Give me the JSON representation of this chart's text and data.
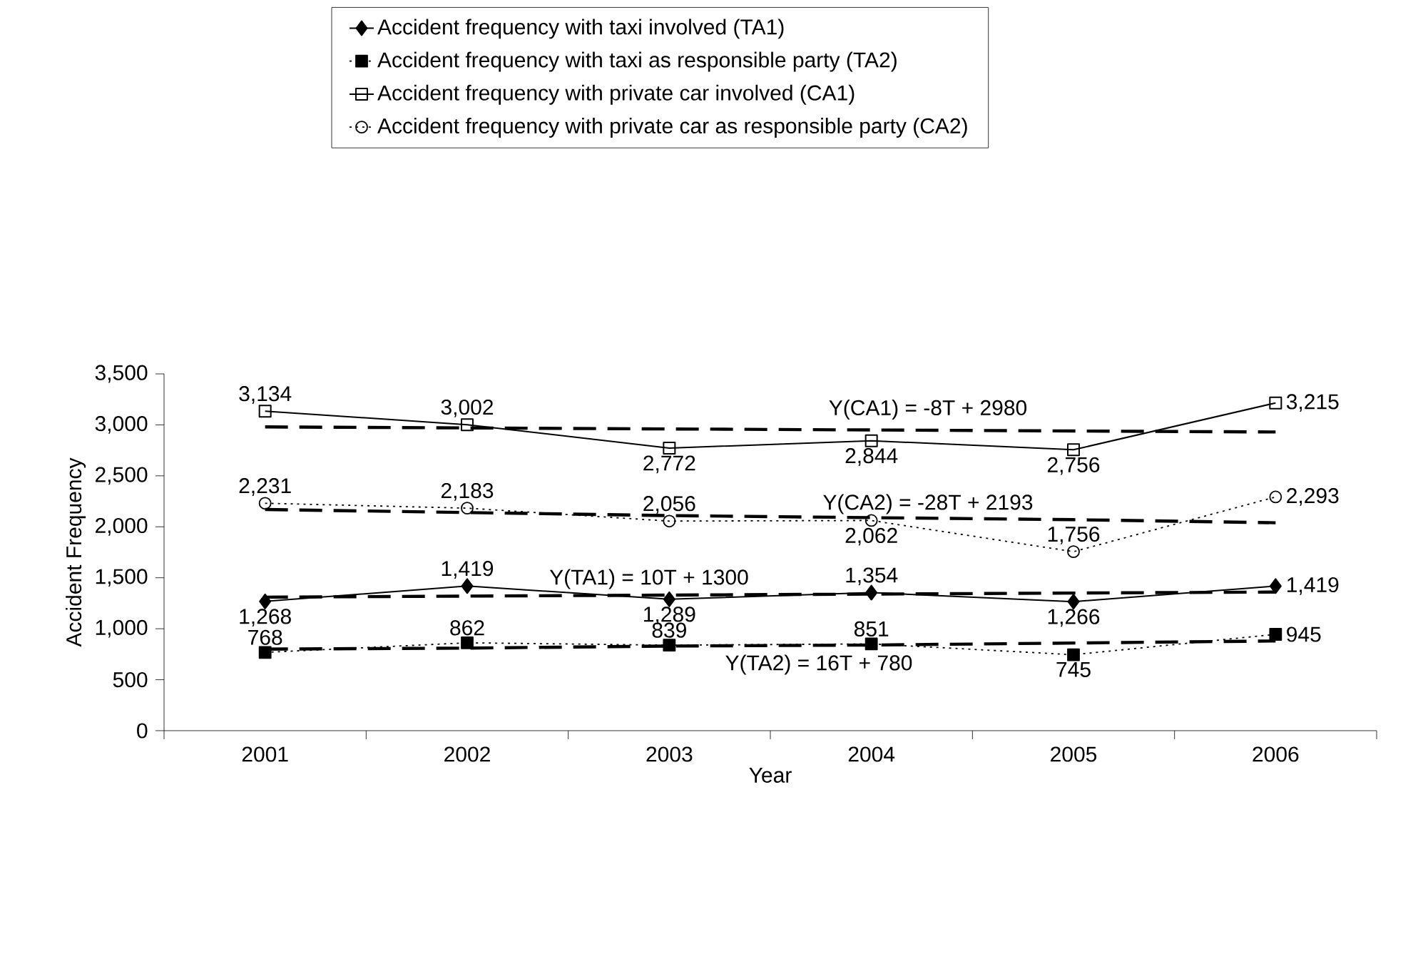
{
  "chart_data": {
    "type": "line",
    "xlabel": "Year",
    "ylabel": "Accident Frequency",
    "categories": [
      "2001",
      "2002",
      "2003",
      "2004",
      "2005",
      "2006"
    ],
    "ylim": [
      0,
      3500
    ],
    "yticks": [
      0,
      500,
      {
        "value": 1000,
        "label": "1,000"
      },
      {
        "value": 1500,
        "label": "1,500"
      },
      {
        "value": 2000,
        "label": "2,000"
      },
      {
        "value": 2500,
        "label": "2,500"
      },
      {
        "value": 3000,
        "label": "3,000"
      },
      {
        "value": 3500,
        "label": "3,500"
      }
    ],
    "legend": "top",
    "grid": false,
    "series": [
      {
        "name": "Accident frequency with taxi involved (TA1)",
        "color": "#000000",
        "marker": "diamond",
        "line_style": "solid",
        "values": [
          1268,
          1419,
          1289,
          1354,
          1266,
          1419
        ],
        "value_labels": [
          "1,268",
          "1,419",
          "1,289",
          "1,354",
          "1,266",
          "1,419"
        ]
      },
      {
        "name": "Accident frequency with taxi as responsible party (TA2)",
        "color": "#000000",
        "marker": "square",
        "line_style": "dotted",
        "values": [
          768,
          862,
          839,
          851,
          745,
          945
        ],
        "value_labels": [
          "768",
          "862",
          "839",
          "851",
          "745",
          "945"
        ]
      },
      {
        "name": "Accident frequency with private car involved (CA1)",
        "color": "#000000",
        "marker": "square-open",
        "line_style": "solid",
        "values": [
          3134,
          3002,
          2772,
          2844,
          2756,
          3215
        ],
        "value_labels": [
          "3,134",
          "3,002",
          "2,772",
          "2,844",
          "2,756",
          "3,215"
        ]
      },
      {
        "name": "Accident frequency with private car as responsible party (CA2)",
        "color": "#000000",
        "marker": "circle-open",
        "line_style": "dotted",
        "values": [
          2231,
          2183,
          2056,
          2062,
          1756,
          2293
        ],
        "value_labels": [
          "2,231",
          "2,183",
          "2,056",
          "2,062",
          "1,756",
          "2,293"
        ]
      },
      {
        "color": "#000000",
        "marker": "none",
        "line_style": "dashed",
        "values": [
          2980,
          2970,
          2960,
          2950,
          2940,
          2930
        ]
      },
      {
        "color": "#000000",
        "marker": "none",
        "line_style": "dashed",
        "values": [
          2170,
          2140,
          2110,
          2090,
          2070,
          2040
        ]
      },
      {
        "color": "#000000",
        "marker": "none",
        "line_style": "dashed",
        "values": [
          1310,
          1320,
          1330,
          1340,
          1350,
          1360
        ]
      },
      {
        "color": "#000000",
        "marker": "none",
        "line_style": "dashed",
        "values": [
          800,
          810,
          830,
          840,
          860,
          880
        ]
      }
    ],
    "annotations": [
      "Y(CA1) = -8T + 2980",
      "Y(CA2) = -28T + 2193",
      "Y(TA1) = 10T + 1300",
      "Y(TA2) = 16T + 780"
    ]
  }
}
